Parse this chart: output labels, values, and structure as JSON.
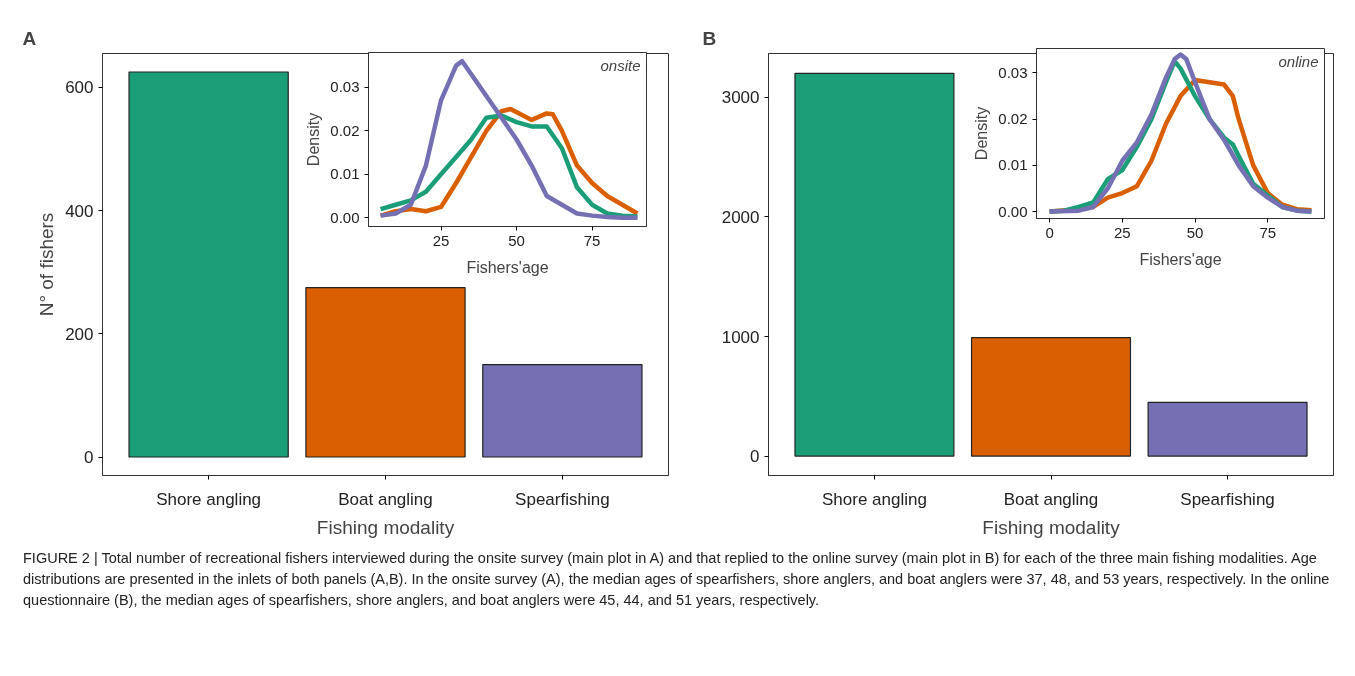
{
  "chart_data": [
    {
      "type": "bar",
      "title": "A",
      "xlabel": "Fishing modality",
      "ylabel": "N° of fishers",
      "categories": [
        "Shore angling",
        "Boat angling",
        "Spearfishing"
      ],
      "values": [
        625,
        275,
        150
      ],
      "colors": [
        "#1b9e77",
        "#d95f02",
        "#7570b3"
      ],
      "ylim": [
        -30,
        655
      ],
      "yticks": [
        0,
        200,
        400,
        600
      ],
      "grid": false,
      "annotations": [
        "FIGURE 2 | Total number of recreational fishers interviewed during the onsite survey (main plot in A) and that replied to the online survey (main plot in B) for each of the three main fishing modalities. Age distributions are presented in the inlets of both panels (A,B). In the onsite survey (A), the median ages of spearfishers, shore anglers, and boat anglers were 37, 48, and 53 years, respectively. In the online questionnaire (B), the median ages of spearfishers, shore anglers, and boat anglers were 45, 44, and 51 years, respectively."
      ]
    },
    {
      "type": "line",
      "xlabel": "Fishers'age",
      "ylabel": "Density",
      "annotations": [
        "onsite"
      ],
      "xlim": [
        1,
        93
      ],
      "ylim": [
        -0.002,
        0.038
      ],
      "xticks": [
        25,
        50,
        75
      ],
      "yticks": [
        {
          "value": 0,
          "label": "0.00"
        },
        {
          "value": 0.01,
          "label": "0.01"
        },
        {
          "value": 0.02,
          "label": "0.02"
        },
        {
          "value": 0.03,
          "label": "0.03"
        }
      ],
      "grid": false,
      "series": [
        {
          "color": "#d95f02",
          "x": [
            5,
            10,
            15,
            20,
            25,
            30,
            35,
            40,
            45,
            48,
            55,
            60,
            62,
            65,
            70,
            75,
            80,
            85,
            90
          ],
          "values": [
            0.0005,
            0.0015,
            0.002,
            0.0015,
            0.0025,
            0.008,
            0.014,
            0.02,
            0.0245,
            0.025,
            0.0225,
            0.024,
            0.0238,
            0.02,
            0.012,
            0.008,
            0.005,
            0.003,
            0.001
          ]
        },
        {
          "color": "#1b9e77",
          "x": [
            5,
            10,
            15,
            20,
            25,
            30,
            35,
            40,
            45,
            50,
            55,
            60,
            65,
            70,
            75,
            80,
            85,
            90
          ],
          "values": [
            0.002,
            0.003,
            0.004,
            0.006,
            0.01,
            0.014,
            0.018,
            0.023,
            0.0235,
            0.022,
            0.021,
            0.021,
            0.016,
            0.007,
            0.003,
            0.001,
            0.0005,
            0.0003
          ]
        },
        {
          "color": "#7570b3",
          "x": [
            5,
            10,
            15,
            20,
            25,
            30,
            32,
            35,
            40,
            45,
            50,
            55,
            60,
            65,
            70,
            75,
            80,
            85,
            90
          ],
          "values": [
            0.0005,
            0.001,
            0.003,
            0.012,
            0.027,
            0.035,
            0.036,
            0.033,
            0.028,
            0.023,
            0.018,
            0.012,
            0.005,
            0.003,
            0.001,
            0.0005,
            0.0002,
            0,
            0
          ]
        }
      ]
    },
    {
      "type": "bar",
      "title": "B",
      "xlabel": "Fishing modality",
      "categories": [
        "Shore angling",
        "Boat angling",
        "Spearfishing"
      ],
      "values": [
        3200,
        990,
        450
      ],
      "colors": [
        "#1b9e77",
        "#d95f02",
        "#7570b3"
      ],
      "ylim": [
        -162,
        3366
      ],
      "yticks": [
        0,
        1000,
        2000,
        3000
      ],
      "grid": false
    },
    {
      "type": "line",
      "xlabel": "Fishers'age",
      "ylabel": "Density",
      "annotations": [
        "online"
      ],
      "xlim": [
        -4.5,
        94.5
      ],
      "ylim": [
        -0.0015,
        0.0353
      ],
      "xticks": [
        0,
        25,
        50,
        75
      ],
      "yticks": [
        {
          "value": 0,
          "label": "0.00"
        },
        {
          "value": 0.01,
          "label": "0.01"
        },
        {
          "value": 0.02,
          "label": "0.02"
        },
        {
          "value": 0.03,
          "label": "0.03"
        }
      ],
      "grid": false,
      "series": [
        {
          "color": "#d95f02",
          "x": [
            0,
            10,
            15,
            20,
            25,
            30,
            35,
            40,
            45,
            50,
            55,
            60,
            63,
            65,
            70,
            75,
            80,
            85,
            90
          ],
          "values": [
            0,
            0.0005,
            0.001,
            0.003,
            0.004,
            0.0055,
            0.011,
            0.019,
            0.025,
            0.0285,
            0.028,
            0.0275,
            0.025,
            0.02,
            0.01,
            0.004,
            0.0015,
            0.0005,
            0.0003
          ]
        },
        {
          "color": "#1b9e77",
          "x": [
            0,
            5,
            10,
            15,
            20,
            25,
            30,
            35,
            40,
            43,
            45,
            50,
            55,
            60,
            63,
            65,
            70,
            75,
            80,
            85,
            90
          ],
          "values": [
            0,
            0.0002,
            0.001,
            0.002,
            0.007,
            0.009,
            0.014,
            0.02,
            0.028,
            0.0325,
            0.031,
            0.025,
            0.02,
            0.016,
            0.0145,
            0.012,
            0.006,
            0.0035,
            0.001,
            0.0002,
            0
          ]
        },
        {
          "color": "#7570b3",
          "x": [
            0,
            10,
            15,
            20,
            25,
            30,
            35,
            40,
            43,
            45,
            47,
            50,
            55,
            60,
            65,
            70,
            75,
            80,
            85,
            90
          ],
          "values": [
            0,
            0.0002,
            0.001,
            0.005,
            0.011,
            0.015,
            0.021,
            0.029,
            0.033,
            0.034,
            0.033,
            0.028,
            0.02,
            0.0155,
            0.01,
            0.0055,
            0.003,
            0.001,
            0.0002,
            0
          ]
        }
      ]
    }
  ]
}
